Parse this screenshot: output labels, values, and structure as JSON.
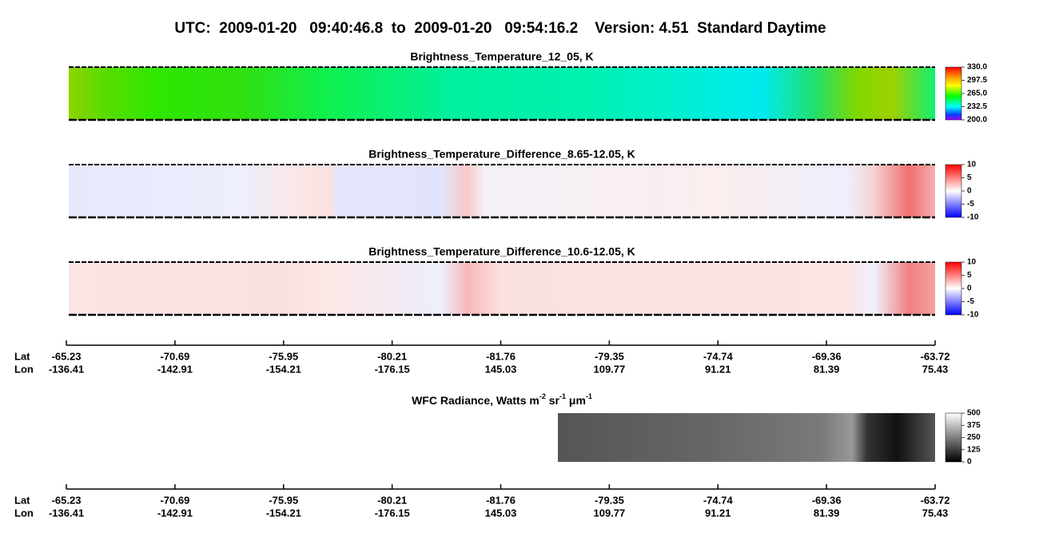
{
  "title": "UTC:  2009-01-20   09:40:46.8  to  2009-01-20   09:54:16.2    Version: 4.51  Standard Daytime",
  "panels": [
    {
      "title": "Brightness_Temperature_12_05, K",
      "colorbar": [
        "330.0",
        "297.5",
        "265.0",
        "232.5",
        "200.0"
      ]
    },
    {
      "title": "Brightness_Temperature_Difference_8.65-12.05, K",
      "colorbar": [
        "10",
        "5",
        "0",
        "-5",
        "-10"
      ]
    },
    {
      "title": "Brightness_Temperature_Difference_10.6-12.05, K",
      "colorbar": [
        "10",
        "5",
        "0",
        "-5",
        "-10"
      ]
    }
  ],
  "axes": [
    {
      "lat_label": "Lat",
      "lon_label": "Lon",
      "lat": [
        "-65.23",
        "-70.69",
        "-75.95",
        "-80.21",
        "-81.76",
        "-79.35",
        "-74.74",
        "-69.36",
        "-63.72"
      ],
      "lon": [
        "-136.41",
        "-142.91",
        "-154.21",
        "-176.15",
        "145.03",
        "109.77",
        "91.21",
        "81.39",
        "75.43"
      ]
    },
    {
      "lat_label": "Lat",
      "lon_label": "Lon",
      "lat": [
        "-65.23",
        "-70.69",
        "-75.95",
        "-80.21",
        "-81.76",
        "-79.35",
        "-74.74",
        "-69.36",
        "-63.72"
      ],
      "lon": [
        "-136.41",
        "-142.91",
        "-154.21",
        "-176.15",
        "145.03",
        "109.77",
        "91.21",
        "81.39",
        "75.43"
      ]
    }
  ],
  "wfc": {
    "title_parts": [
      "WFC Radiance, Watts m",
      "-2",
      " sr",
      "-1",
      " μm",
      "-1"
    ],
    "colorbar": [
      "500",
      "375",
      "250",
      "125",
      "0"
    ]
  }
}
